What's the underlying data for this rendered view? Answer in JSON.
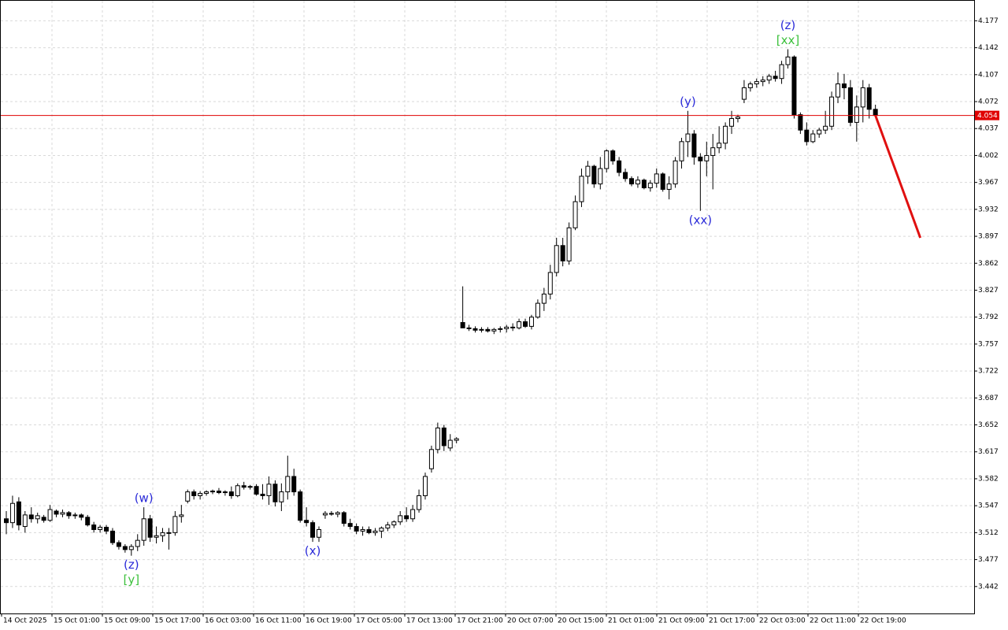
{
  "chart_data": {
    "type": "candlestick",
    "open": [
      3.53,
      3.525,
      3.552,
      3.52,
      3.535,
      3.53,
      3.532,
      3.528,
      3.54,
      3.536,
      3.538,
      3.534,
      3.535,
      3.532,
      3.522,
      3.516,
      3.519,
      3.514,
      3.499,
      3.494,
      3.49,
      3.494,
      3.502,
      3.53,
      3.506,
      3.508,
      3.512,
      3.512,
      3.533,
      3.553,
      3.565,
      3.56,
      3.563,
      3.565,
      3.566,
      3.564,
      3.565,
      3.56,
      3.573,
      3.571,
      3.572,
      3.562,
      3.56,
      3.575,
      3.552,
      3.565,
      3.585,
      3.565,
      3.528,
      3.525,
      3.506,
      3.535,
      3.537,
      3.536,
      3.538,
      3.524,
      3.52,
      3.514,
      3.516,
      3.512,
      3.514,
      3.518,
      3.522,
      3.526,
      3.534,
      3.53,
      3.542,
      3.56,
      3.595,
      3.62,
      3.648,
      3.622,
      3.632,
      3.785,
      3.778,
      3.777,
      3.775,
      3.776,
      3.774,
      3.776,
      3.777,
      3.779,
      3.778,
      3.786,
      3.78,
      3.792,
      3.81,
      3.822,
      3.85,
      3.885,
      3.865,
      3.908,
      3.942,
      3.975,
      3.988,
      3.965,
      3.985,
      4.008,
      3.995,
      3.98,
      3.972,
      3.965,
      3.97,
      3.96,
      3.966,
      3.978,
      3.958,
      3.965,
      3.995,
      4.02,
      4.03,
      4.0,
      3.995,
      4.002,
      4.012,
      4.018,
      4.04,
      4.05,
      4.075,
      4.09,
      4.095,
      4.098,
      4.1,
      4.105,
      4.102,
      4.12,
      4.13,
      4.055,
      4.035,
      4.02,
      4.03,
      4.035,
      4.04,
      4.078,
      4.095,
      4.09,
      4.045,
      4.065,
      4.09,
      4.062
    ],
    "high": [
      3.54,
      3.56,
      3.558,
      3.54,
      3.545,
      3.538,
      3.535,
      3.548,
      3.542,
      3.542,
      3.54,
      3.538,
      3.537,
      3.535,
      3.526,
      3.522,
      3.522,
      3.518,
      3.502,
      3.497,
      3.497,
      3.51,
      3.545,
      3.535,
      3.52,
      3.518,
      3.518,
      3.54,
      3.548,
      3.568,
      3.568,
      3.566,
      3.567,
      3.568,
      3.57,
      3.567,
      3.572,
      3.576,
      3.578,
      3.574,
      3.575,
      3.575,
      3.585,
      3.58,
      3.576,
      3.612,
      3.595,
      3.568,
      3.545,
      3.528,
      3.52,
      3.54,
      3.54,
      3.54,
      3.54,
      3.53,
      3.524,
      3.52,
      3.52,
      3.518,
      3.52,
      3.526,
      3.528,
      3.54,
      3.545,
      3.548,
      3.568,
      3.59,
      3.625,
      3.655,
      3.652,
      3.64,
      3.636,
      3.832,
      3.782,
      3.78,
      3.779,
      3.779,
      3.778,
      3.78,
      3.782,
      3.784,
      3.79,
      3.79,
      3.795,
      3.815,
      3.83,
      3.86,
      3.895,
      3.895,
      3.915,
      3.95,
      3.985,
      3.995,
      3.99,
      4.0,
      4.01,
      4.01,
      4.0,
      3.985,
      3.975,
      3.975,
      3.972,
      3.97,
      3.985,
      3.98,
      3.975,
      4.0,
      4.025,
      4.06,
      4.035,
      4.005,
      4.02,
      4.03,
      4.04,
      4.045,
      4.06,
      4.055,
      4.1,
      4.098,
      4.102,
      4.105,
      4.108,
      4.112,
      4.125,
      4.14,
      4.132,
      4.058,
      4.045,
      4.035,
      4.038,
      4.06,
      4.085,
      4.11,
      4.108,
      4.1,
      4.08,
      4.1,
      4.095,
      4.068
    ],
    "low": [
      3.51,
      3.518,
      3.515,
      3.512,
      3.525,
      3.524,
      3.525,
      3.526,
      3.532,
      3.532,
      3.53,
      3.53,
      3.528,
      3.52,
      3.512,
      3.512,
      3.51,
      3.496,
      3.49,
      3.486,
      3.482,
      3.488,
      3.495,
      3.5,
      3.498,
      3.5,
      3.49,
      3.508,
      3.525,
      3.55,
      3.555,
      3.555,
      3.56,
      3.562,
      3.562,
      3.56,
      3.556,
      3.558,
      3.568,
      3.568,
      3.56,
      3.555,
      3.548,
      3.546,
      3.54,
      3.555,
      3.56,
      3.525,
      3.52,
      3.5,
      3.5,
      3.53,
      3.534,
      3.532,
      3.52,
      3.516,
      3.51,
      3.508,
      3.51,
      3.508,
      3.505,
      3.514,
      3.518,
      3.522,
      3.526,
      3.526,
      3.538,
      3.555,
      3.59,
      3.615,
      3.618,
      3.618,
      3.628,
      3.778,
      3.774,
      3.772,
      3.772,
      3.772,
      3.77,
      3.772,
      3.772,
      3.774,
      3.776,
      3.778,
      3.776,
      3.79,
      3.8,
      3.815,
      3.845,
      3.858,
      3.86,
      3.905,
      3.935,
      3.965,
      3.96,
      3.958,
      3.98,
      3.99,
      3.975,
      3.968,
      3.962,
      3.96,
      3.958,
      3.955,
      3.96,
      3.955,
      3.945,
      3.96,
      3.985,
      4.0,
      3.99,
      3.93,
      3.975,
      3.958,
      4.005,
      4.01,
      4.03,
      4.045,
      4.07,
      4.085,
      4.09,
      4.092,
      4.095,
      4.098,
      4.095,
      4.115,
      4.05,
      4.03,
      4.015,
      4.018,
      4.025,
      4.03,
      4.035,
      4.07,
      4.075,
      4.04,
      4.02,
      4.045,
      4.05,
      4.052
    ],
    "close": [
      3.525,
      3.55,
      3.522,
      3.535,
      3.53,
      3.534,
      3.528,
      3.542,
      3.536,
      3.538,
      3.534,
      3.535,
      3.532,
      3.522,
      3.516,
      3.519,
      3.514,
      3.499,
      3.494,
      3.49,
      3.494,
      3.502,
      3.53,
      3.506,
      3.508,
      3.512,
      3.512,
      3.533,
      3.535,
      3.565,
      3.56,
      3.563,
      3.565,
      3.566,
      3.564,
      3.565,
      3.56,
      3.573,
      3.571,
      3.572,
      3.562,
      3.56,
      3.575,
      3.552,
      3.565,
      3.585,
      3.565,
      3.528,
      3.525,
      3.506,
      3.516,
      3.537,
      3.536,
      3.538,
      3.524,
      3.52,
      3.514,
      3.516,
      3.512,
      3.514,
      3.518,
      3.522,
      3.526,
      3.534,
      3.53,
      3.542,
      3.56,
      3.585,
      3.62,
      3.648,
      3.625,
      3.632,
      3.634,
      3.778,
      3.777,
      3.775,
      3.776,
      3.774,
      3.776,
      3.777,
      3.779,
      3.778,
      3.786,
      3.78,
      3.792,
      3.81,
      3.822,
      3.85,
      3.885,
      3.865,
      3.908,
      3.942,
      3.975,
      3.988,
      3.965,
      3.985,
      4.008,
      3.995,
      3.98,
      3.972,
      3.965,
      3.97,
      3.96,
      3.966,
      3.978,
      3.958,
      3.965,
      3.995,
      4.02,
      4.03,
      4.0,
      3.995,
      4.002,
      4.012,
      4.018,
      4.04,
      4.05,
      4.052,
      4.09,
      4.095,
      4.098,
      4.1,
      4.105,
      4.102,
      4.12,
      4.13,
      4.055,
      4.035,
      4.02,
      4.03,
      4.035,
      4.04,
      4.078,
      4.095,
      4.09,
      4.045,
      4.065,
      4.09,
      4.062,
      4.054
    ],
    "up_color": "#ffffff",
    "down_color": "#000000",
    "ylim": [
      3.407,
      4.204
    ],
    "yticks": [
      3.442,
      3.477,
      3.512,
      3.547,
      3.582,
      3.617,
      3.652,
      3.687,
      3.722,
      3.757,
      3.792,
      3.827,
      3.862,
      3.897,
      3.932,
      3.967,
      4.002,
      4.037,
      4.072,
      4.107,
      4.142,
      4.177
    ],
    "grid": true,
    "x_labels": [
      "14 Oct 2025",
      "15 Oct 01:00",
      "15 Oct 09:00",
      "15 Oct 17:00",
      "16 Oct 03:00",
      "16 Oct 11:00",
      "16 Oct 19:00",
      "17 Oct 05:00",
      "17 Oct 13:00",
      "17 Oct 21:00",
      "20 Oct 07:00",
      "20 Oct 15:00",
      "21 Oct 01:00",
      "21 Oct 09:00",
      "21 Oct 17:00",
      "22 Oct 03:00",
      "22 Oct 11:00",
      "22 Oct 19:00"
    ],
    "current_price": 4.054,
    "price_line_color": "#e00000",
    "forecast": [
      4.054,
      3.895
    ],
    "forecast_color": "#e01010",
    "annotations": [
      {
        "text": "(w)",
        "color": "#2a2ad8",
        "candle": 22,
        "side": "above"
      },
      {
        "text": "(z)",
        "color": "#2a2ad8",
        "candle": 20,
        "side": "below"
      },
      {
        "text": "[y]",
        "color": "#3cc03c",
        "candle": 20,
        "side": "below"
      },
      {
        "text": "(x)",
        "color": "#2a2ad8",
        "candle": 49,
        "side": "below"
      },
      {
        "text": "(y)",
        "color": "#2a2ad8",
        "candle": 109,
        "side": "above"
      },
      {
        "text": "(xx)",
        "color": "#2a2ad8",
        "candle": 111,
        "side": "below"
      },
      {
        "text": "[xx]",
        "color": "#3cc03c",
        "candle": 125,
        "side": "above"
      },
      {
        "text": "(z)",
        "color": "#2a2ad8",
        "candle": 125,
        "side": "above"
      }
    ]
  }
}
